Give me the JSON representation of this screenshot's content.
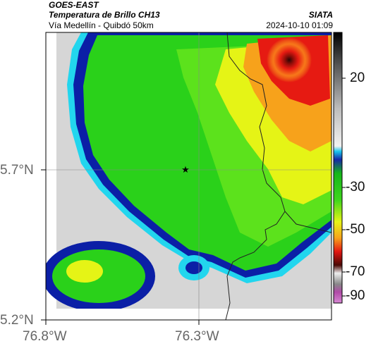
{
  "header": {
    "satellite": "GOES-EAST",
    "product": "Temperatura de Brillo CH13",
    "subtitle": "Vía Medellín - Quibdó 50km",
    "org": "SIATA",
    "datetime": "2024-10-10 01:09"
  },
  "axes": {
    "lat_ticks": [
      "5.7°N",
      "5.2°N"
    ],
    "lon_ticks": [
      "76.8°W",
      "76.3°W"
    ]
  },
  "colorbar": {
    "ticks": [
      "20",
      "-30",
      "-50",
      "-70",
      "-90"
    ]
  },
  "map": {
    "marker": "star-marker",
    "colors": {
      "warm_gray": "#d9d9d9",
      "cyan": "#21d8f0",
      "blue": "#0a22a8",
      "green": "#2ad11a",
      "yellow": "#e8f515",
      "orange": "#f7a21b",
      "red": "#e61a12",
      "dark": "#3a0a06"
    }
  }
}
